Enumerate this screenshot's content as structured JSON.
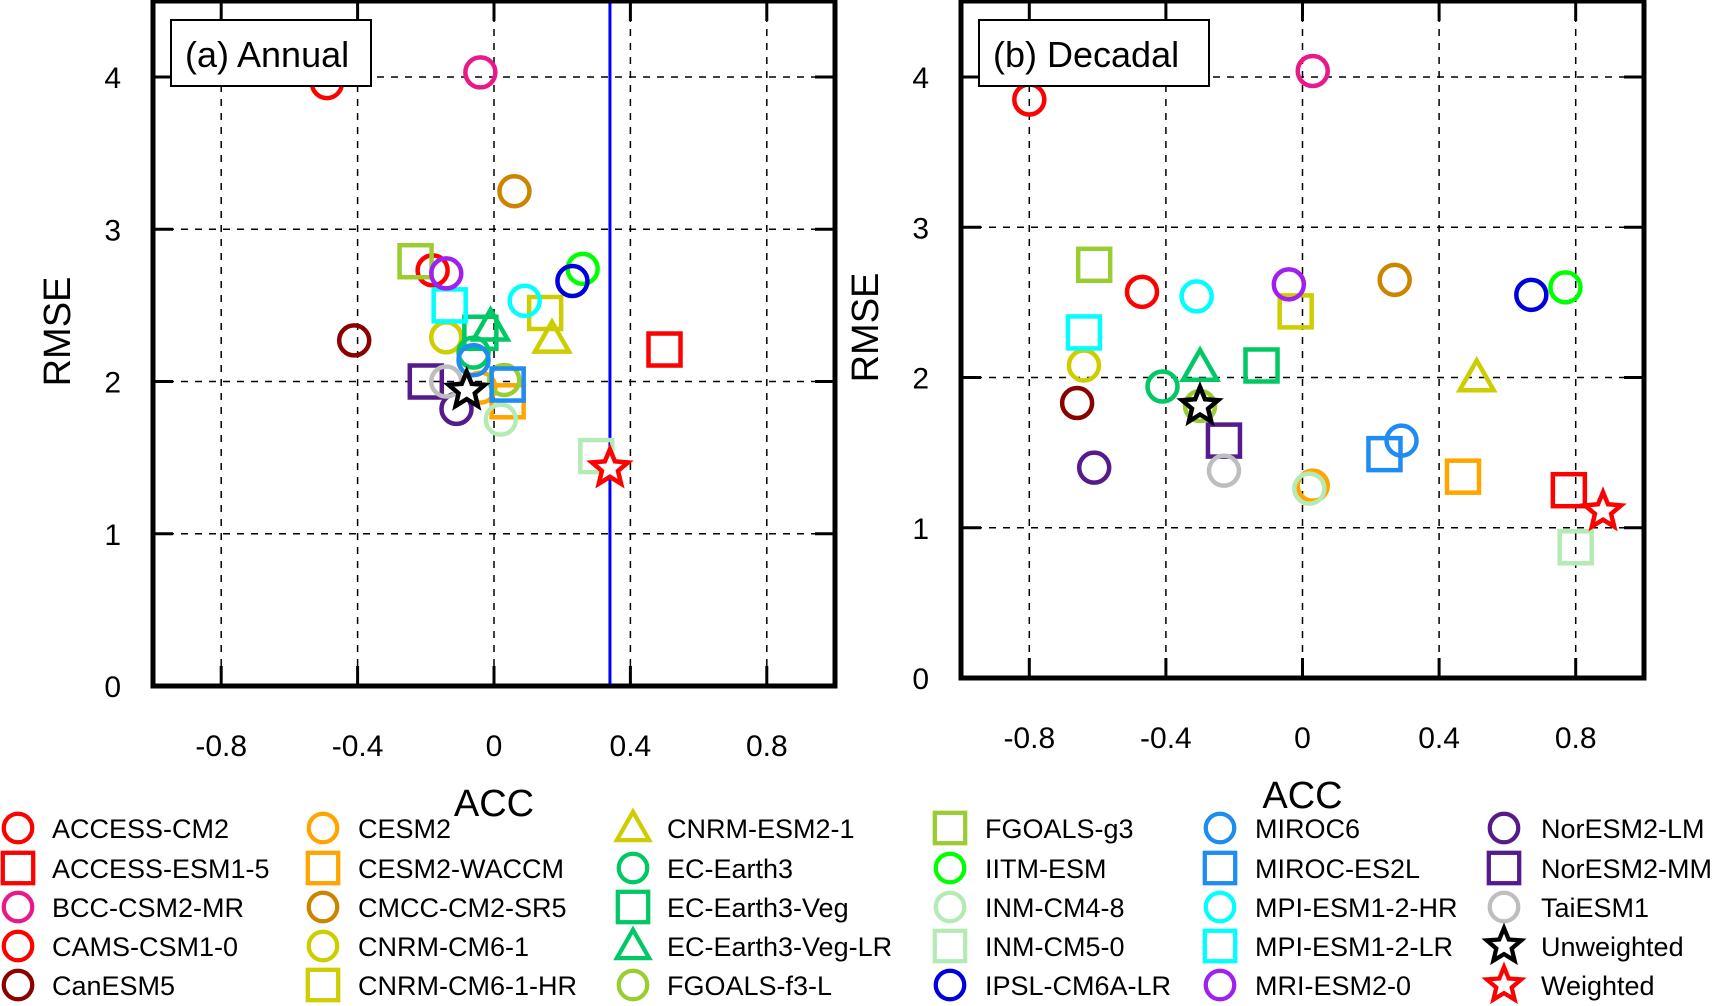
{
  "chart_data": {
    "type": "scatter",
    "xlabel": "ACC",
    "ylabel": "RMSE",
    "xlim": [
      -1,
      1
    ],
    "ylim": [
      0,
      4.5
    ],
    "xticks": [
      "-0.8",
      "-0.4",
      "0",
      "0.4",
      "0.8"
    ],
    "xtick_values": [
      -0.8,
      -0.4,
      0,
      0.4,
      0.8
    ],
    "yticks": [
      "0",
      "1",
      "2",
      "3",
      "4"
    ],
    "ytick_values": [
      0,
      1,
      2,
      3,
      4
    ],
    "grid": true,
    "legend_placement": "bottom",
    "models": [
      {
        "name": "ACCESS-CM2",
        "marker": "circle",
        "color": "#ff0000"
      },
      {
        "name": "ACCESS-ESM1-5",
        "marker": "square",
        "color": "#ff0000"
      },
      {
        "name": "BCC-CSM2-MR",
        "marker": "circle",
        "color": "#e8198b"
      },
      {
        "name": "CAMS-CSM1-0",
        "marker": "circle",
        "color": "#ff0000"
      },
      {
        "name": "CanESM5",
        "marker": "circle",
        "color": "#8b0000"
      },
      {
        "name": "CESM2",
        "marker": "circle",
        "color": "#ffa500"
      },
      {
        "name": "CESM2-WACCM",
        "marker": "square",
        "color": "#ffa500"
      },
      {
        "name": "CMCC-CM2-SR5",
        "marker": "circle",
        "color": "#cd8500"
      },
      {
        "name": "CNRM-CM6-1",
        "marker": "circle",
        "color": "#cdcd00"
      },
      {
        "name": "CNRM-CM6-1-HR",
        "marker": "square",
        "color": "#cdcd00"
      },
      {
        "name": "CNRM-ESM2-1",
        "marker": "triangle",
        "color": "#cdcd00"
      },
      {
        "name": "EC-Earth3",
        "marker": "circle",
        "color": "#00c864"
      },
      {
        "name": "EC-Earth3-Veg",
        "marker": "square",
        "color": "#00c864"
      },
      {
        "name": "EC-Earth3-Veg-LR",
        "marker": "triangle",
        "color": "#00c864"
      },
      {
        "name": "FGOALS-f3-L",
        "marker": "circle",
        "color": "#9acd32"
      },
      {
        "name": "FGOALS-g3",
        "marker": "square",
        "color": "#9acd32"
      },
      {
        "name": "IITM-ESM",
        "marker": "circle",
        "color": "#00ff00"
      },
      {
        "name": "INM-CM4-8",
        "marker": "circle",
        "color": "#b4ebb4"
      },
      {
        "name": "INM-CM5-0",
        "marker": "square",
        "color": "#b4ebb4"
      },
      {
        "name": "IPSL-CM6A-LR",
        "marker": "circle",
        "color": "#0000dc"
      },
      {
        "name": "MIROC6",
        "marker": "circle",
        "color": "#1e8cf0"
      },
      {
        "name": "MIROC-ES2L",
        "marker": "square",
        "color": "#1e8cf0"
      },
      {
        "name": "MPI-ESM1-2-HR",
        "marker": "circle",
        "color": "#00ffff"
      },
      {
        "name": "MPI-ESM1-2-LR",
        "marker": "square",
        "color": "#00ffff"
      },
      {
        "name": "MRI-ESM2-0",
        "marker": "circle",
        "color": "#a020f0"
      },
      {
        "name": "NorESM2-LM",
        "marker": "circle",
        "color": "#551a8b"
      },
      {
        "name": "NorESM2-MM",
        "marker": "square",
        "color": "#551a8b"
      },
      {
        "name": "TaiESM1",
        "marker": "circle",
        "color": "#bebebe"
      },
      {
        "name": "Unweighted",
        "marker": "star",
        "color": "#000000"
      },
      {
        "name": "Weighted",
        "marker": "star",
        "color": "#ff0000"
      }
    ],
    "panels": [
      {
        "title": "(a) Annual",
        "reference_line": {
          "x": 0.34,
          "color": "#0000ff"
        },
        "points": {
          "ACCESS-CM2": [
            -0.18,
            2.73
          ],
          "ACCESS-ESM1-5": [
            0.5,
            2.21
          ],
          "BCC-CSM2-MR": [
            -0.04,
            4.03
          ],
          "CAMS-CSM1-0": [
            -0.49,
            3.96
          ],
          "CanESM5": [
            -0.41,
            2.27
          ],
          "CESM2": [
            -0.04,
            1.96
          ],
          "CESM2-WACCM": [
            0.04,
            1.87
          ],
          "CMCC-CM2-SR5": [
            0.06,
            3.25
          ],
          "CNRM-CM6-1": [
            -0.14,
            2.29
          ],
          "CNRM-CM6-1-HR": [
            0.15,
            2.45
          ],
          "CNRM-ESM2-1": [
            0.17,
            2.28
          ],
          "EC-Earth3": [
            -0.06,
            2.19
          ],
          "EC-Earth3-Veg": [
            -0.04,
            2.32
          ],
          "EC-Earth3-Veg-LR": [
            -0.01,
            2.36
          ],
          "FGOALS-f3-L": [
            0.03,
            2.01
          ],
          "FGOALS-g3": [
            -0.23,
            2.79
          ],
          "IITM-ESM": [
            0.26,
            2.74
          ],
          "INM-CM4-8": [
            0.02,
            1.75
          ],
          "INM-CM5-0": [
            0.3,
            1.51
          ],
          "IPSL-CM6A-LR": [
            0.23,
            2.66
          ],
          "MIROC6": [
            -0.06,
            2.14
          ],
          "MIROC-ES2L": [
            0.04,
            1.98
          ],
          "MPI-ESM1-2-HR": [
            0.09,
            2.53
          ],
          "MPI-ESM1-2-LR": [
            -0.13,
            2.5
          ],
          "MRI-ESM2-0": [
            -0.14,
            2.71
          ],
          "NorESM2-LM": [
            -0.11,
            1.82
          ],
          "NorESM2-MM": [
            -0.2,
            2.0
          ],
          "TaiESM1": [
            -0.14,
            2.0
          ],
          "Unweighted": [
            -0.08,
            1.94
          ],
          "Weighted": [
            0.34,
            1.43
          ]
        }
      },
      {
        "title": "(b) Decadal",
        "reference_line": null,
        "points": {
          "ACCESS-CM2": [
            -0.47,
            2.57
          ],
          "ACCESS-ESM1-5": [
            0.78,
            1.25
          ],
          "BCC-CSM2-MR": [
            0.03,
            4.04
          ],
          "CAMS-CSM1-0": [
            -0.8,
            3.85
          ],
          "CanESM5": [
            -0.66,
            1.83
          ],
          "CESM2": [
            0.03,
            1.28
          ],
          "CESM2-WACCM": [
            0.47,
            1.34
          ],
          "CMCC-CM2-SR5": [
            0.27,
            2.65
          ],
          "CNRM-CM6-1": [
            -0.64,
            2.08
          ],
          "CNRM-CM6-1-HR": [
            -0.02,
            2.44
          ],
          "CNRM-ESM2-1": [
            0.51,
            2.0
          ],
          "EC-Earth3": [
            -0.41,
            1.94
          ],
          "EC-Earth3-Veg": [
            -0.12,
            2.08
          ],
          "EC-Earth3-Veg-LR": [
            -0.3,
            2.07
          ],
          "FGOALS-f3-L": [
            -0.3,
            1.81
          ],
          "FGOALS-g3": [
            -0.61,
            2.75
          ],
          "IITM-ESM": [
            0.77,
            2.6
          ],
          "INM-CM4-8": [
            0.02,
            1.26
          ],
          "INM-CM5-0": [
            0.8,
            0.87
          ],
          "IPSL-CM6A-LR": [
            0.67,
            2.55
          ],
          "MIROC6": [
            0.29,
            1.58
          ],
          "MIROC-ES2L": [
            0.24,
            1.49
          ],
          "MPI-ESM1-2-HR": [
            -0.31,
            2.54
          ],
          "MPI-ESM1-2-LR": [
            -0.64,
            2.3
          ],
          "MRI-ESM2-0": [
            -0.04,
            2.62
          ],
          "NorESM2-LM": [
            -0.61,
            1.4
          ],
          "NorESM2-MM": [
            -0.23,
            1.58
          ],
          "TaiESM1": [
            -0.23,
            1.38
          ],
          "Unweighted": [
            -0.3,
            1.81
          ],
          "Weighted": [
            0.88,
            1.11
          ]
        }
      }
    ]
  }
}
